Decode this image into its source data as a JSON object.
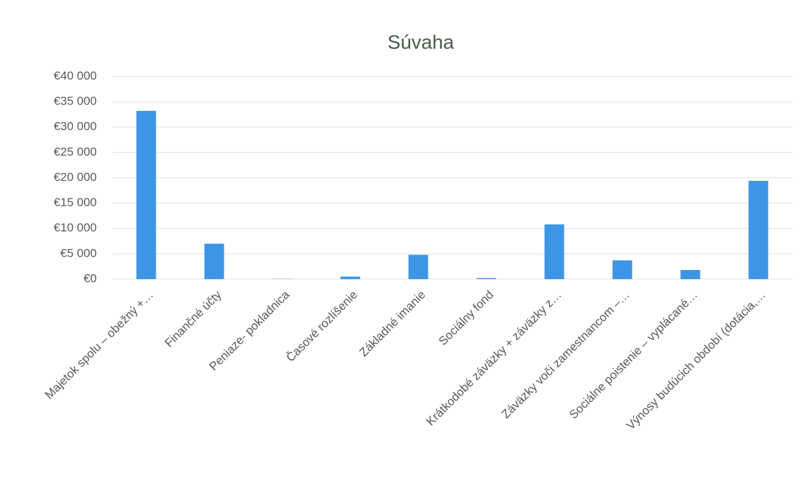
{
  "chart_data": {
    "type": "bar",
    "title": "Súvaha",
    "categories": [
      "Majetok spolu – obežný +…",
      "Finančné účty",
      "Peniaze- pokladnica",
      "Časové rozlíšenie",
      "Základné imanie",
      "Sociálny fond",
      "Krátkodobé záväzky + záväzky z…",
      "Záväzky voči zamestnancom –…",
      "Sociálne poistenie – vyplácané…",
      "Výnosy budúcich období (dotácia,…"
    ],
    "values": [
      33200,
      7000,
      50,
      500,
      4800,
      200,
      10800,
      3700,
      1800,
      19400
    ],
    "color": "#3d95e6",
    "ylim": [
      0,
      40000
    ],
    "yticks": [
      {
        "value": 0,
        "label": "€0"
      },
      {
        "value": 5000,
        "label": "€5 000"
      },
      {
        "value": 10000,
        "label": "€10 000"
      },
      {
        "value": 15000,
        "label": "€15 000"
      },
      {
        "value": 20000,
        "label": "€20 000"
      },
      {
        "value": 25000,
        "label": "€25 000"
      },
      {
        "value": 30000,
        "label": "€30 000"
      },
      {
        "value": 35000,
        "label": "€35 000"
      },
      {
        "value": 40000,
        "label": "€40 000"
      }
    ],
    "grid": true
  }
}
